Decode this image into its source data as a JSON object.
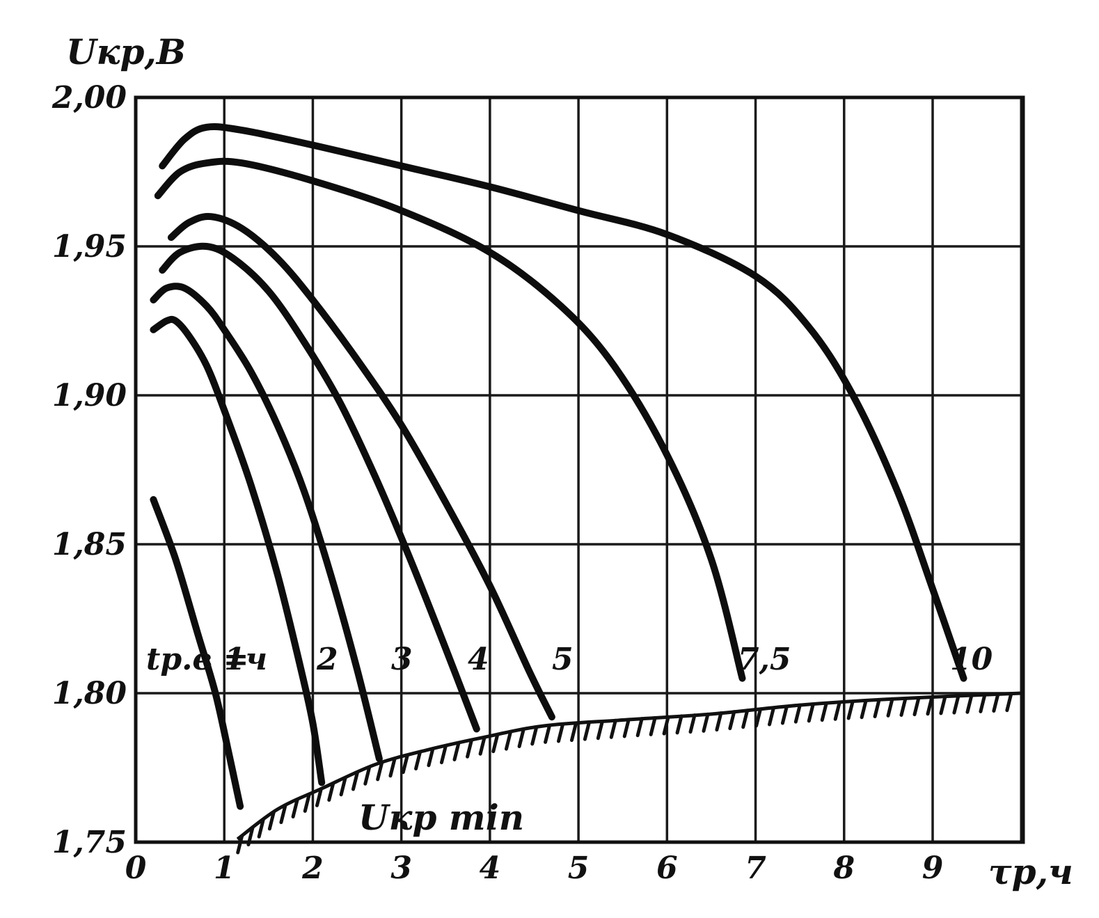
{
  "colors": {
    "ink": "#111111",
    "paper": "#ffffff"
  },
  "chart_data": {
    "type": "line",
    "xlabel": "τp,ч",
    "ylabel": "Uкр,B",
    "xlim": [
      0,
      10
    ],
    "ylim": [
      1.75,
      2.0
    ],
    "grid": true,
    "x_ticks": [
      "0",
      "1",
      "2",
      "3",
      "4",
      "5",
      "6",
      "7",
      "8",
      "9"
    ],
    "y_ticks": [
      "1,75",
      "1,80",
      "1,85",
      "1,90",
      "1,95",
      "2,00"
    ],
    "y_tick_values": [
      1.75,
      1.8,
      1.85,
      1.9,
      1.95,
      2.0
    ],
    "series_prefix": "tр.в =",
    "series": [
      {
        "name": "1ч",
        "x": [
          0.2,
          0.45,
          0.7,
          0.9,
          1.05,
          1.18
        ],
        "y": [
          1.865,
          1.845,
          1.82,
          1.8,
          1.78,
          1.762
        ]
      },
      {
        "name": "2",
        "x": [
          0.2,
          0.35,
          0.45,
          0.6,
          0.8,
          1.0,
          1.3,
          1.6,
          1.85,
          2.0,
          2.1
        ],
        "y": [
          1.922,
          1.925,
          1.925,
          1.92,
          1.91,
          1.895,
          1.87,
          1.84,
          1.81,
          1.79,
          1.77
        ]
      },
      {
        "name": "3",
        "x": [
          0.2,
          0.35,
          0.55,
          0.8,
          1.0,
          1.3,
          1.6,
          1.9,
          2.2,
          2.5,
          2.75
        ],
        "y": [
          1.932,
          1.936,
          1.936,
          1.93,
          1.922,
          1.908,
          1.89,
          1.868,
          1.84,
          1.808,
          1.778
        ]
      },
      {
        "name": "4",
        "x": [
          0.3,
          0.5,
          0.8,
          1.1,
          1.5,
          1.9,
          2.3,
          2.7,
          3.1,
          3.5,
          3.85
        ],
        "y": [
          1.942,
          1.948,
          1.95,
          1.946,
          1.935,
          1.918,
          1.898,
          1.873,
          1.845,
          1.815,
          1.788
        ]
      },
      {
        "name": "5",
        "x": [
          0.4,
          0.6,
          0.85,
          1.2,
          1.6,
          2.0,
          2.5,
          3.0,
          3.5,
          4.0,
          4.45,
          4.7
        ],
        "y": [
          1.953,
          1.958,
          1.96,
          1.956,
          1.946,
          1.932,
          1.912,
          1.89,
          1.864,
          1.836,
          1.807,
          1.792
        ]
      },
      {
        "name": "7,5",
        "x": [
          0.25,
          0.5,
          0.8,
          1.2,
          2.0,
          3.0,
          4.0,
          4.8,
          5.4,
          6.0,
          6.5,
          6.85
        ],
        "y": [
          1.967,
          1.975,
          1.978,
          1.978,
          1.972,
          1.962,
          1.948,
          1.93,
          1.91,
          1.88,
          1.845,
          1.805
        ]
      },
      {
        "name": "10",
        "x": [
          0.3,
          0.55,
          0.8,
          1.2,
          2.0,
          3.0,
          4.0,
          5.0,
          6.0,
          7.0,
          7.6,
          8.1,
          8.6,
          9.0,
          9.35
        ],
        "y": [
          1.977,
          1.986,
          1.99,
          1.989,
          1.984,
          1.977,
          1.97,
          1.962,
          1.954,
          1.94,
          1.923,
          1.9,
          1.868,
          1.835,
          1.805
        ]
      }
    ],
    "annotations": [
      {
        "text": "Uкр min",
        "type": "hatched-boundary",
        "x": [
          1.15,
          1.6,
          2.1,
          2.7,
          3.3,
          3.9,
          4.6,
          5.5,
          6.5,
          7.5,
          8.5,
          10.0
        ],
        "y": [
          1.751,
          1.761,
          1.768,
          1.776,
          1.781,
          1.785,
          1.789,
          1.791,
          1.793,
          1.796,
          1.798,
          1.8
        ]
      }
    ]
  }
}
